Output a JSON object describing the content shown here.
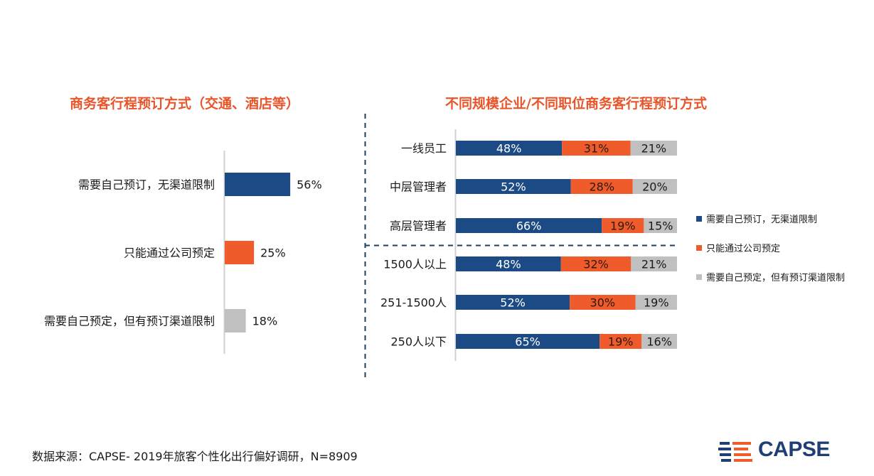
{
  "colors": {
    "title": "#e8552a",
    "navy": "#1b4a84",
    "orange": "#ef5b2b",
    "gray": "#c0c0c0",
    "axis": "#d0d0d0",
    "dash": "#1f3f5e"
  },
  "chart_data": [
    {
      "type": "bar",
      "orientation": "horizontal",
      "title": "商务客行程预订方式（交通、酒店等）",
      "categories": [
        "需要自己预订，无渠道限制",
        "只能通过公司预定",
        "需要自己预定，但有预订渠道限制"
      ],
      "values": [
        56,
        25,
        18
      ],
      "value_labels": [
        "56%",
        "25%",
        "18%"
      ],
      "colors": [
        "#1b4a84",
        "#ef5b2b",
        "#c0c0c0"
      ],
      "xlabel": "",
      "ylabel": "",
      "xlim": [
        0,
        100
      ],
      "grid": false
    },
    {
      "type": "bar",
      "orientation": "horizontal",
      "stacked": true,
      "title": "不同规模企业/不同职位商务客行程预订方式",
      "categories": [
        "一线员工",
        "中层管理者",
        "高层管理者",
        "1500人以上",
        "251-1500人",
        "250人以下"
      ],
      "series": [
        {
          "name": "需要自己预订，无渠道限制",
          "color": "#1b4a84",
          "values": [
            48,
            52,
            66,
            48,
            52,
            65
          ],
          "labels": [
            "48%",
            "52%",
            "66%",
            "48%",
            "52%",
            "65%"
          ]
        },
        {
          "name": "只能通过公司预定",
          "color": "#ef5b2b",
          "values": [
            31,
            28,
            19,
            32,
            30,
            19
          ],
          "labels": [
            "31%",
            "28%",
            "19%",
            "32%",
            "30%",
            "19%"
          ]
        },
        {
          "name": "需要自己预定，但有预订渠道限制",
          "color": "#c0c0c0",
          "values": [
            21,
            20,
            15,
            21,
            19,
            16
          ],
          "labels": [
            "21%",
            "20%",
            "15%",
            "21%",
            "19%",
            "16%"
          ]
        }
      ],
      "legend_position": "right",
      "xlim": [
        0,
        100
      ],
      "grid": false
    }
  ],
  "footer": {
    "source": "数据来源：CAPSE- 2019年旅客个性化出行偏好调研，N=8909",
    "logo_text": "CAPSE"
  }
}
